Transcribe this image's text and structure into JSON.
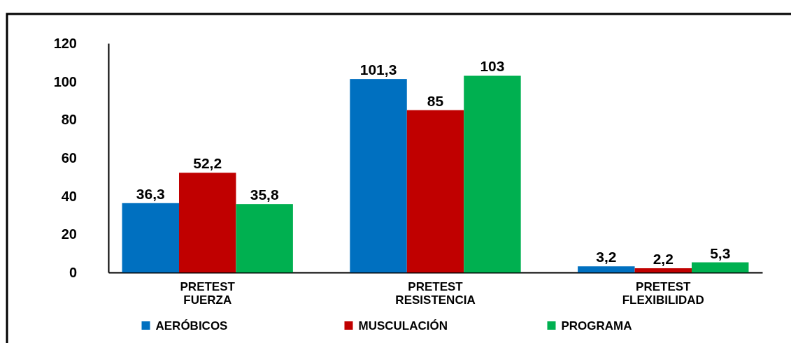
{
  "chart_data": {
    "type": "bar",
    "categories": [
      "PRETEST FUERZA",
      "PRETEST RESISTENCIA",
      "PRETEST FLEXIBILIDAD"
    ],
    "series": [
      {
        "name": "AERÓBICOS",
        "color": "#0070c0",
        "values": [
          36.3,
          101.3,
          3.2
        ],
        "value_labels": [
          "36,3",
          "101,3",
          "3,2"
        ]
      },
      {
        "name": "MUSCULACIÓN",
        "color": "#c00000",
        "values": [
          52.2,
          85,
          2.2
        ],
        "value_labels": [
          "52,2",
          "85",
          "2,2"
        ]
      },
      {
        "name": "PROGRAMA",
        "color": "#00b050",
        "values": [
          35.8,
          103,
          5.3
        ],
        "value_labels": [
          "35,8",
          "103",
          "5,3"
        ]
      }
    ],
    "ylim": [
      0,
      120
    ],
    "yticks": [
      0,
      20,
      40,
      60,
      80,
      100,
      120
    ],
    "grid": false,
    "legend": "bottom"
  }
}
